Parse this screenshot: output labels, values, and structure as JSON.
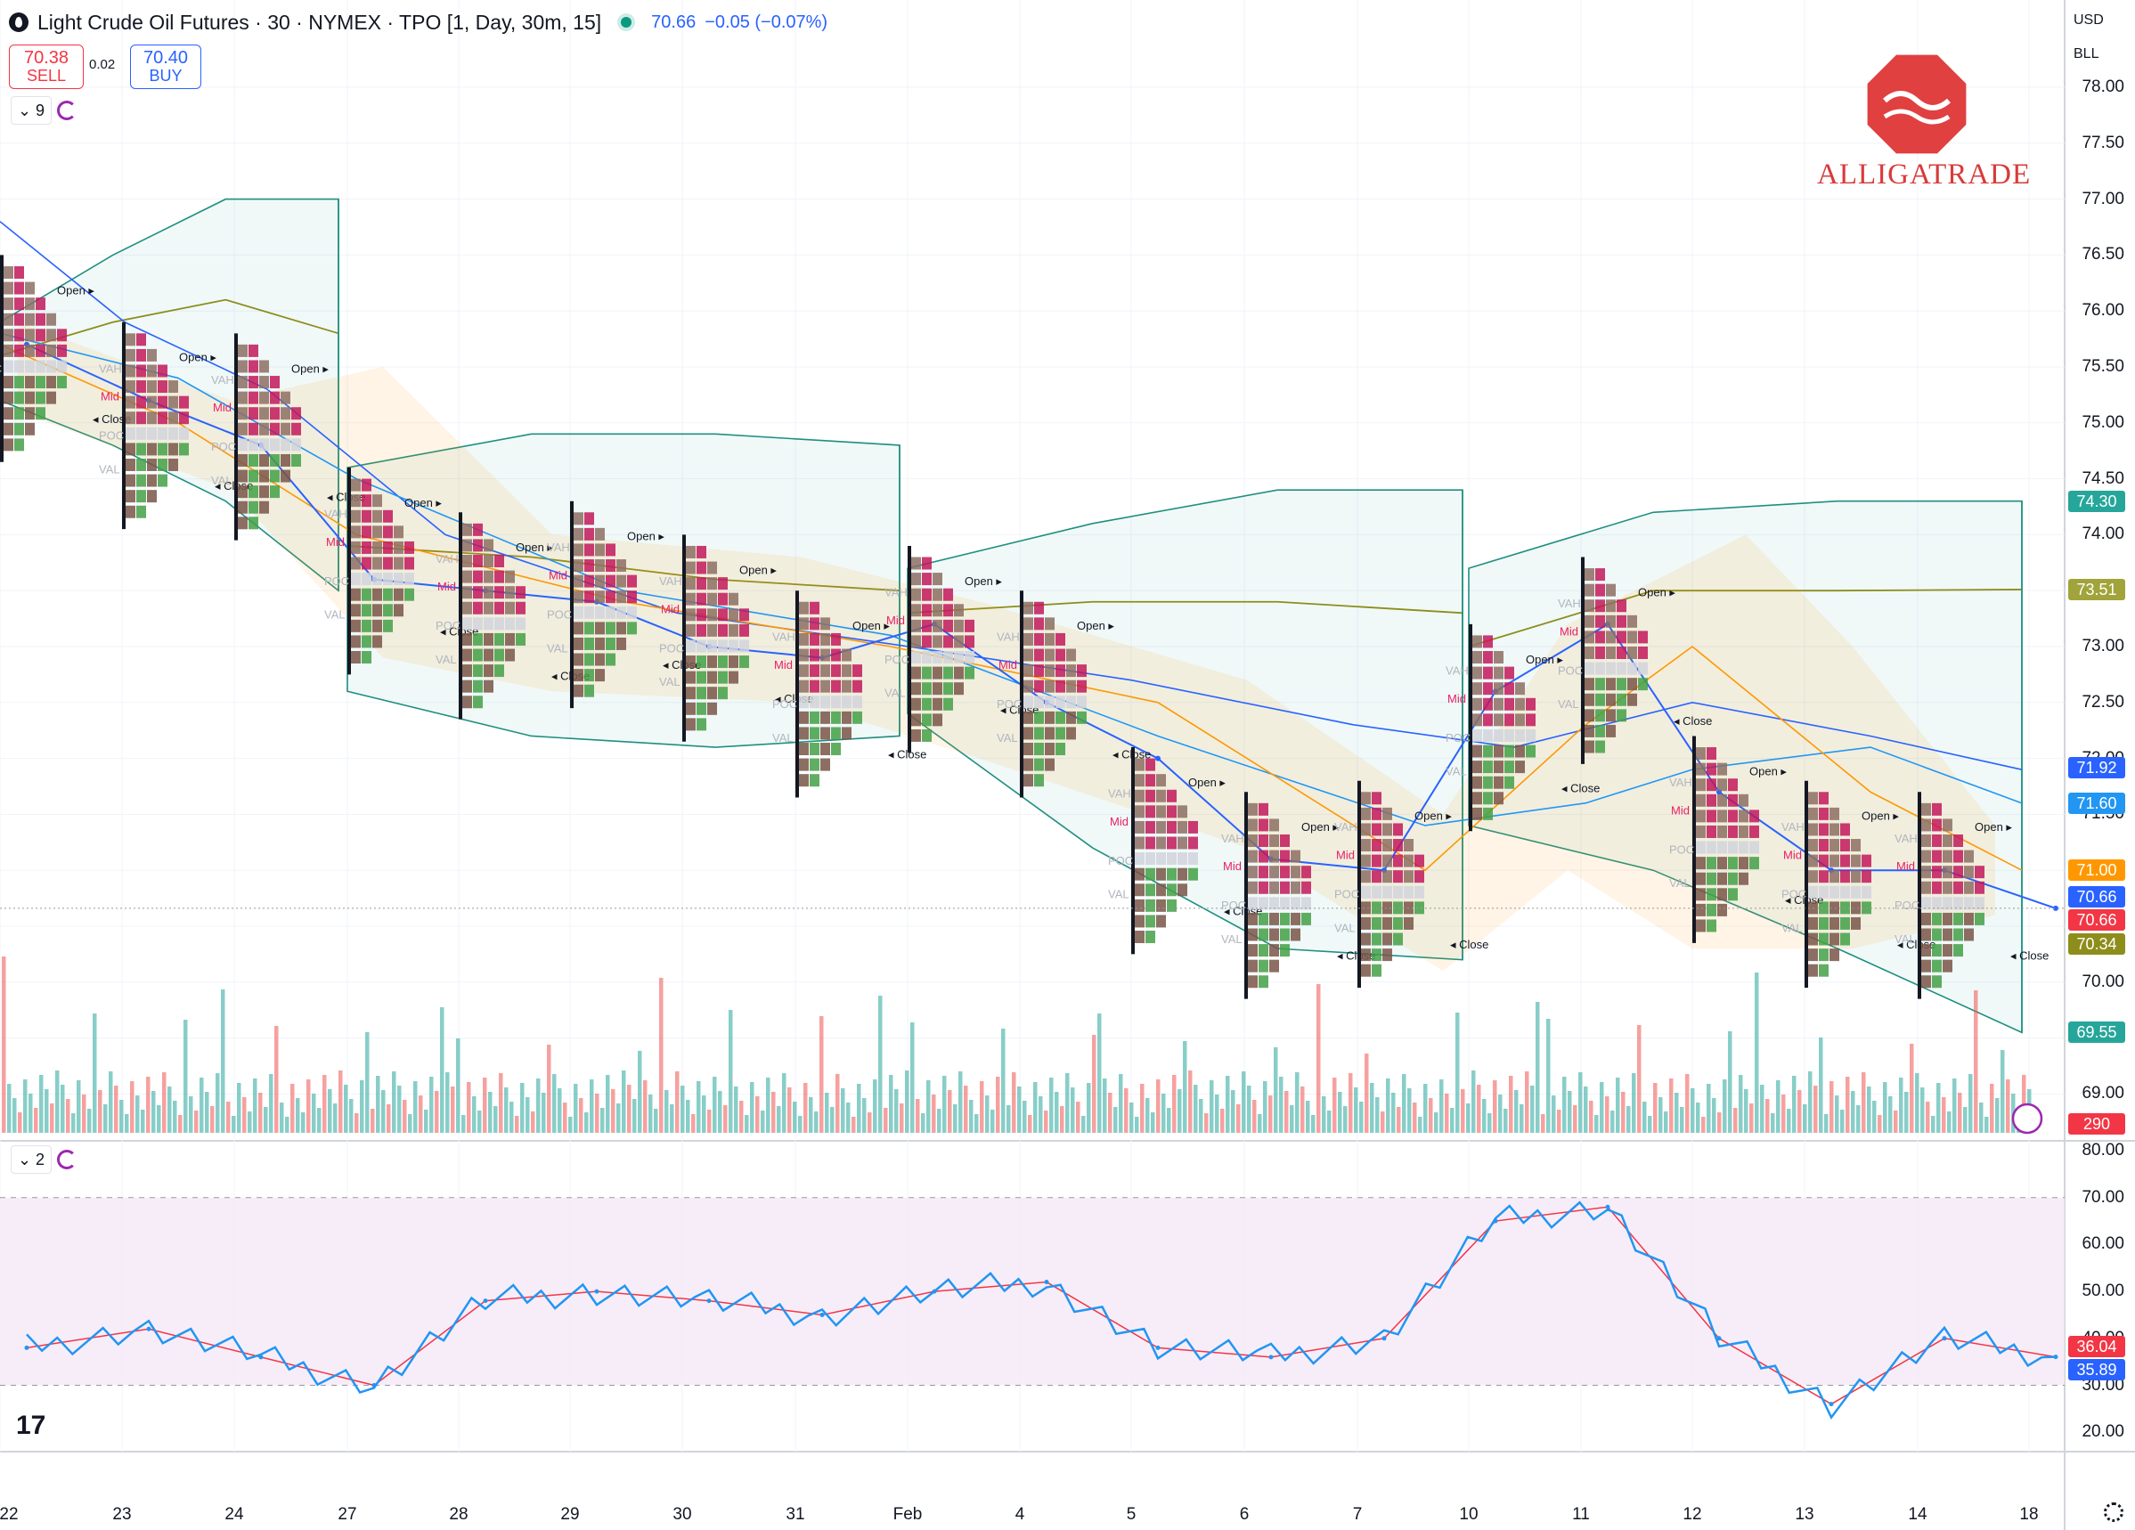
{
  "header": {
    "title": "Light Crude Oil Futures · 30 · NYMEX · TPO [1, Day, 30m, 15]",
    "last": "70.66",
    "change": "−0.05 (−0.07%)",
    "sell_price": "70.38",
    "sell_label": "SELL",
    "spread": "0.02",
    "buy_price": "70.40",
    "buy_label": "BUY",
    "currency": "USD",
    "unit": "BLL"
  },
  "panes": {
    "main_count": "9",
    "rsi_count": "2"
  },
  "brand": {
    "name": "ALLIGATRADE"
  },
  "colors": {
    "up": "#26a69a",
    "down": "#ef5350",
    "blue": "#2962ff",
    "rsi_fill": "#f3e5f5",
    "tpo_pink": "#e91e63",
    "tpo_green": "#4caf50"
  },
  "price_axis": {
    "ticks": [
      "78.00",
      "77.50",
      "77.00",
      "76.50",
      "76.00",
      "75.50",
      "75.00",
      "74.50",
      "74.00",
      "73.50",
      "73.00",
      "72.50",
      "72.00",
      "71.50",
      "71.00",
      "70.50",
      "70.00",
      "69.50",
      "69.00"
    ],
    "tags": [
      {
        "label": "74.30",
        "color": "#26a69a"
      },
      {
        "label": "73.51",
        "color": "#a1a43b"
      },
      {
        "label": "71.92",
        "color": "#2962ff"
      },
      {
        "label": "71.60",
        "color": "#2196f3"
      },
      {
        "label": "71.00",
        "color": "#ff9800"
      },
      {
        "label": "70.66",
        "color": "#2962ff"
      },
      {
        "label": "70.66",
        "color": "#f23645"
      },
      {
        "label": "70.34",
        "color": "#8d8d1c"
      },
      {
        "label": "69.55",
        "color": "#26a69a"
      },
      {
        "label": "290",
        "color": "#f23645"
      }
    ]
  },
  "rsi_axis": {
    "ticks": [
      "80.00",
      "70.00",
      "60.00",
      "50.00",
      "40.00",
      "30.00",
      "20.00"
    ],
    "tags": [
      {
        "label": "36.04",
        "color": "#f23645"
      },
      {
        "label": "35.89",
        "color": "#2962ff"
      }
    ]
  },
  "time_axis": [
    "22",
    "23",
    "24",
    "27",
    "28",
    "29",
    "30",
    "31",
    "Feb",
    "4",
    "5",
    "6",
    "7",
    "10",
    "11",
    "12",
    "13",
    "14",
    "18"
  ],
  "tpo_labels": {
    "open": "Open",
    "close": "Close",
    "mid": "Mid",
    "poc": "POC",
    "vah": "VAH",
    "val": "VAL"
  },
  "chart_data": {
    "type": "line",
    "title": "Light Crude Oil Futures · 30 · NYMEX · TPO [1, Day, 30m, 15]",
    "x": [
      "22",
      "23",
      "24",
      "27",
      "28",
      "29",
      "30",
      "31",
      "Feb",
      "4",
      "5",
      "6",
      "7",
      "10",
      "11",
      "12",
      "13",
      "14",
      "18"
    ],
    "series": [
      {
        "name": "",
        "values": [
          75.7,
          75.2,
          74.8,
          73.6,
          73.5,
          73.4,
          73.0,
          72.9,
          73.2,
          72.5,
          72.0,
          71.1,
          71.0,
          72.6,
          73.2,
          71.7,
          71.0,
          71.0,
          70.66
        ]
      }
    ],
    "rsi": [
      38,
      42,
      36,
      30,
      48,
      50,
      48,
      45,
      50,
      52,
      38,
      36,
      40,
      65,
      68,
      40,
      26,
      40,
      36.04
    ],
    "ylim": [
      68.6,
      78.4
    ],
    "grid": true
  }
}
